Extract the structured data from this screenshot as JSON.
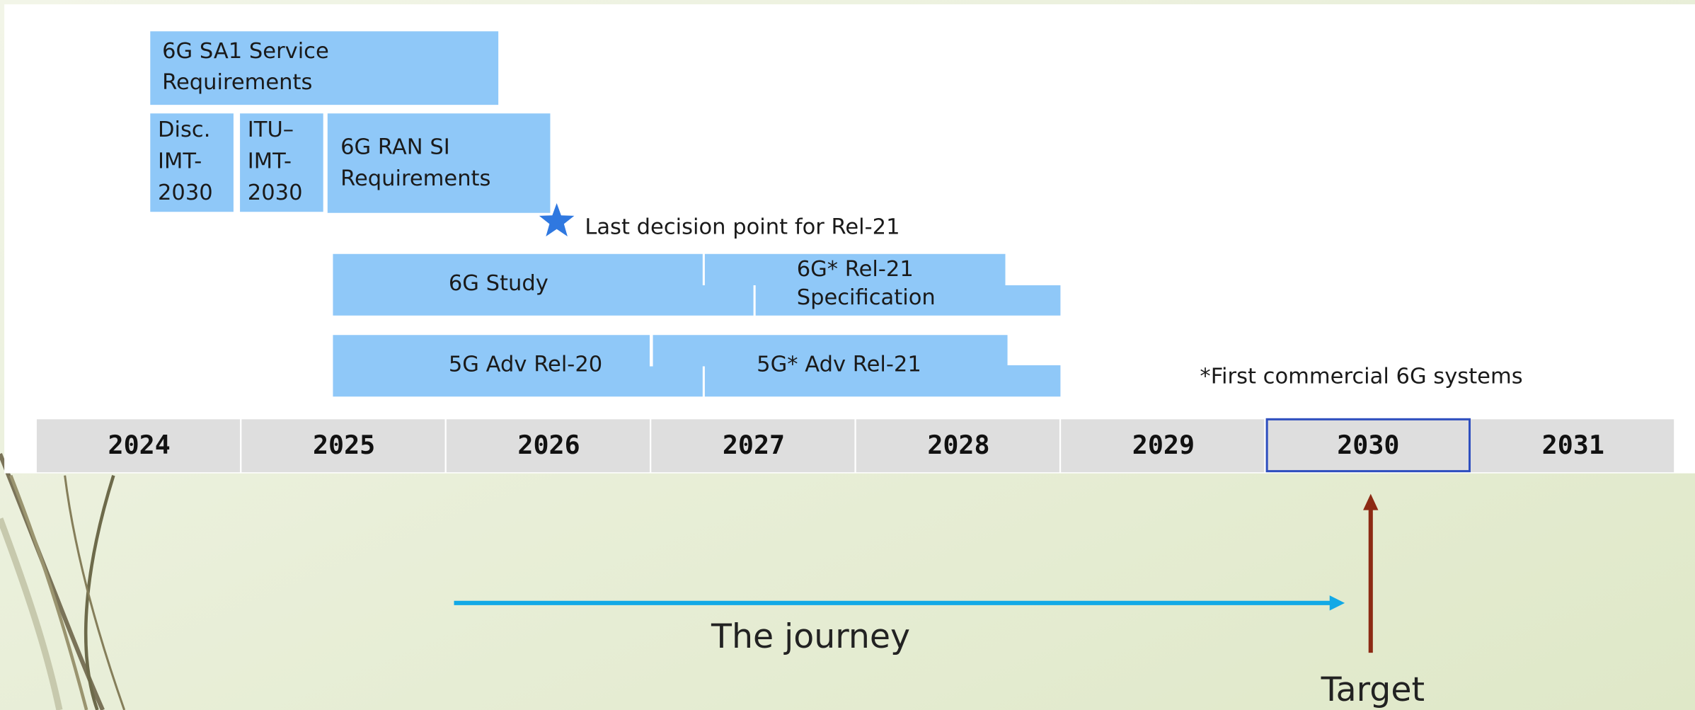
{
  "blocks": [
    {
      "lines": [
        "6G SA1 Service",
        "Requirements"
      ]
    },
    {
      "lines": [
        "Disc.",
        "IMT-",
        "2030"
      ]
    },
    {
      "lines": [
        "ITU–",
        "IMT-",
        "2030"
      ]
    },
    {
      "lines": [
        "6G RAN SI",
        "Requirements"
      ]
    },
    {
      "lines": [
        "6G Study"
      ]
    },
    {
      "lines": [
        "6G* Rel-21",
        "Specification"
      ]
    },
    {
      "lines": [
        "5G Adv Rel-20"
      ]
    },
    {
      "lines": [
        "5G* Adv Rel-21"
      ]
    }
  ],
  "block_color": "#8fc8f8",
  "milestone": "Last decision point for Rel-21",
  "footnote": "*First commercial 6G systems",
  "years": [
    "2024",
    "2025",
    "2026",
    "2027",
    "2028",
    "2029",
    "2030",
    "2031"
  ],
  "highlight_year": "2030",
  "journey": "The journey",
  "target": "Target"
}
